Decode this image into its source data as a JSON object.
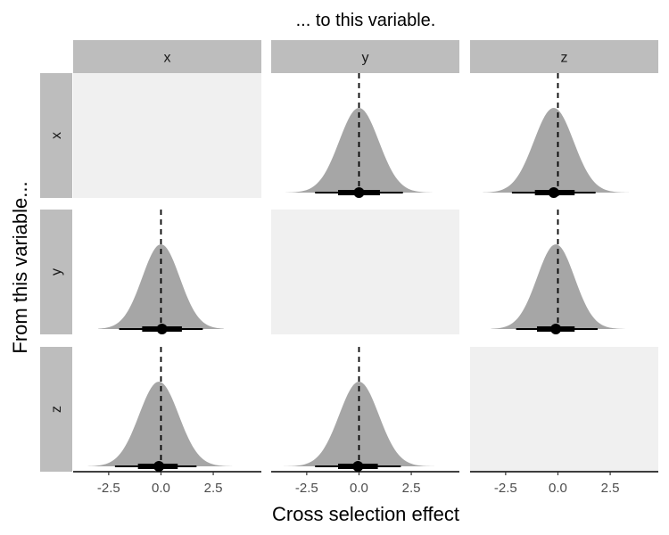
{
  "chart_data": {
    "type": "density-interval facet grid",
    "title": "... to this variable.",
    "xlabel": "Cross selection effect",
    "ylabel": "From this variable...",
    "column_facets": [
      "x",
      "y",
      "z"
    ],
    "row_facets": [
      "x",
      "y",
      "z"
    ],
    "x_ticks": [
      -2.5,
      0.0,
      2.5
    ],
    "x_tick_labels": [
      "-2.5",
      "0.0",
      "2.5"
    ],
    "xlim": [
      -4.2,
      4.8
    ],
    "reference_line_x": 0,
    "grid": false,
    "panels": [
      {
        "row": "x",
        "col": "x",
        "empty": true
      },
      {
        "row": "x",
        "col": "y",
        "empty": false,
        "density_range": [
          -3.5,
          3.5
        ],
        "mean": 0.0,
        "sd": 0.95,
        "median": 0.0,
        "interval_66": [
          -1.0,
          1.0
        ],
        "interval_95": [
          -2.1,
          2.1
        ]
      },
      {
        "row": "x",
        "col": "z",
        "empty": false,
        "density_range": [
          -3.6,
          3.4
        ],
        "mean": -0.2,
        "sd": 0.95,
        "median": -0.2,
        "interval_66": [
          -1.1,
          0.8
        ],
        "interval_95": [
          -2.2,
          1.8
        ]
      },
      {
        "row": "y",
        "col": "x",
        "empty": false,
        "density_range": [
          -3.0,
          3.0
        ],
        "mean": 0.0,
        "sd": 0.9,
        "median": 0.05,
        "interval_66": [
          -0.9,
          1.0
        ],
        "interval_95": [
          -2.0,
          2.0
        ]
      },
      {
        "row": "y",
        "col": "y",
        "empty": true
      },
      {
        "row": "y",
        "col": "z",
        "empty": false,
        "density_range": [
          -3.2,
          3.2
        ],
        "mean": -0.1,
        "sd": 0.9,
        "median": -0.1,
        "interval_66": [
          -1.0,
          0.8
        ],
        "interval_95": [
          -2.0,
          1.9
        ]
      },
      {
        "row": "z",
        "col": "x",
        "empty": false,
        "density_range": [
          -3.5,
          3.4
        ],
        "mean": -0.1,
        "sd": 0.95,
        "median": -0.1,
        "interval_66": [
          -1.1,
          0.8
        ],
        "interval_95": [
          -2.2,
          1.7
        ]
      },
      {
        "row": "z",
        "col": "y",
        "empty": false,
        "density_range": [
          -3.6,
          3.6
        ],
        "mean": 0.0,
        "sd": 0.95,
        "median": -0.05,
        "interval_66": [
          -1.0,
          0.9
        ],
        "interval_95": [
          -2.1,
          2.0
        ]
      },
      {
        "row": "z",
        "col": "z",
        "empty": true
      }
    ]
  }
}
